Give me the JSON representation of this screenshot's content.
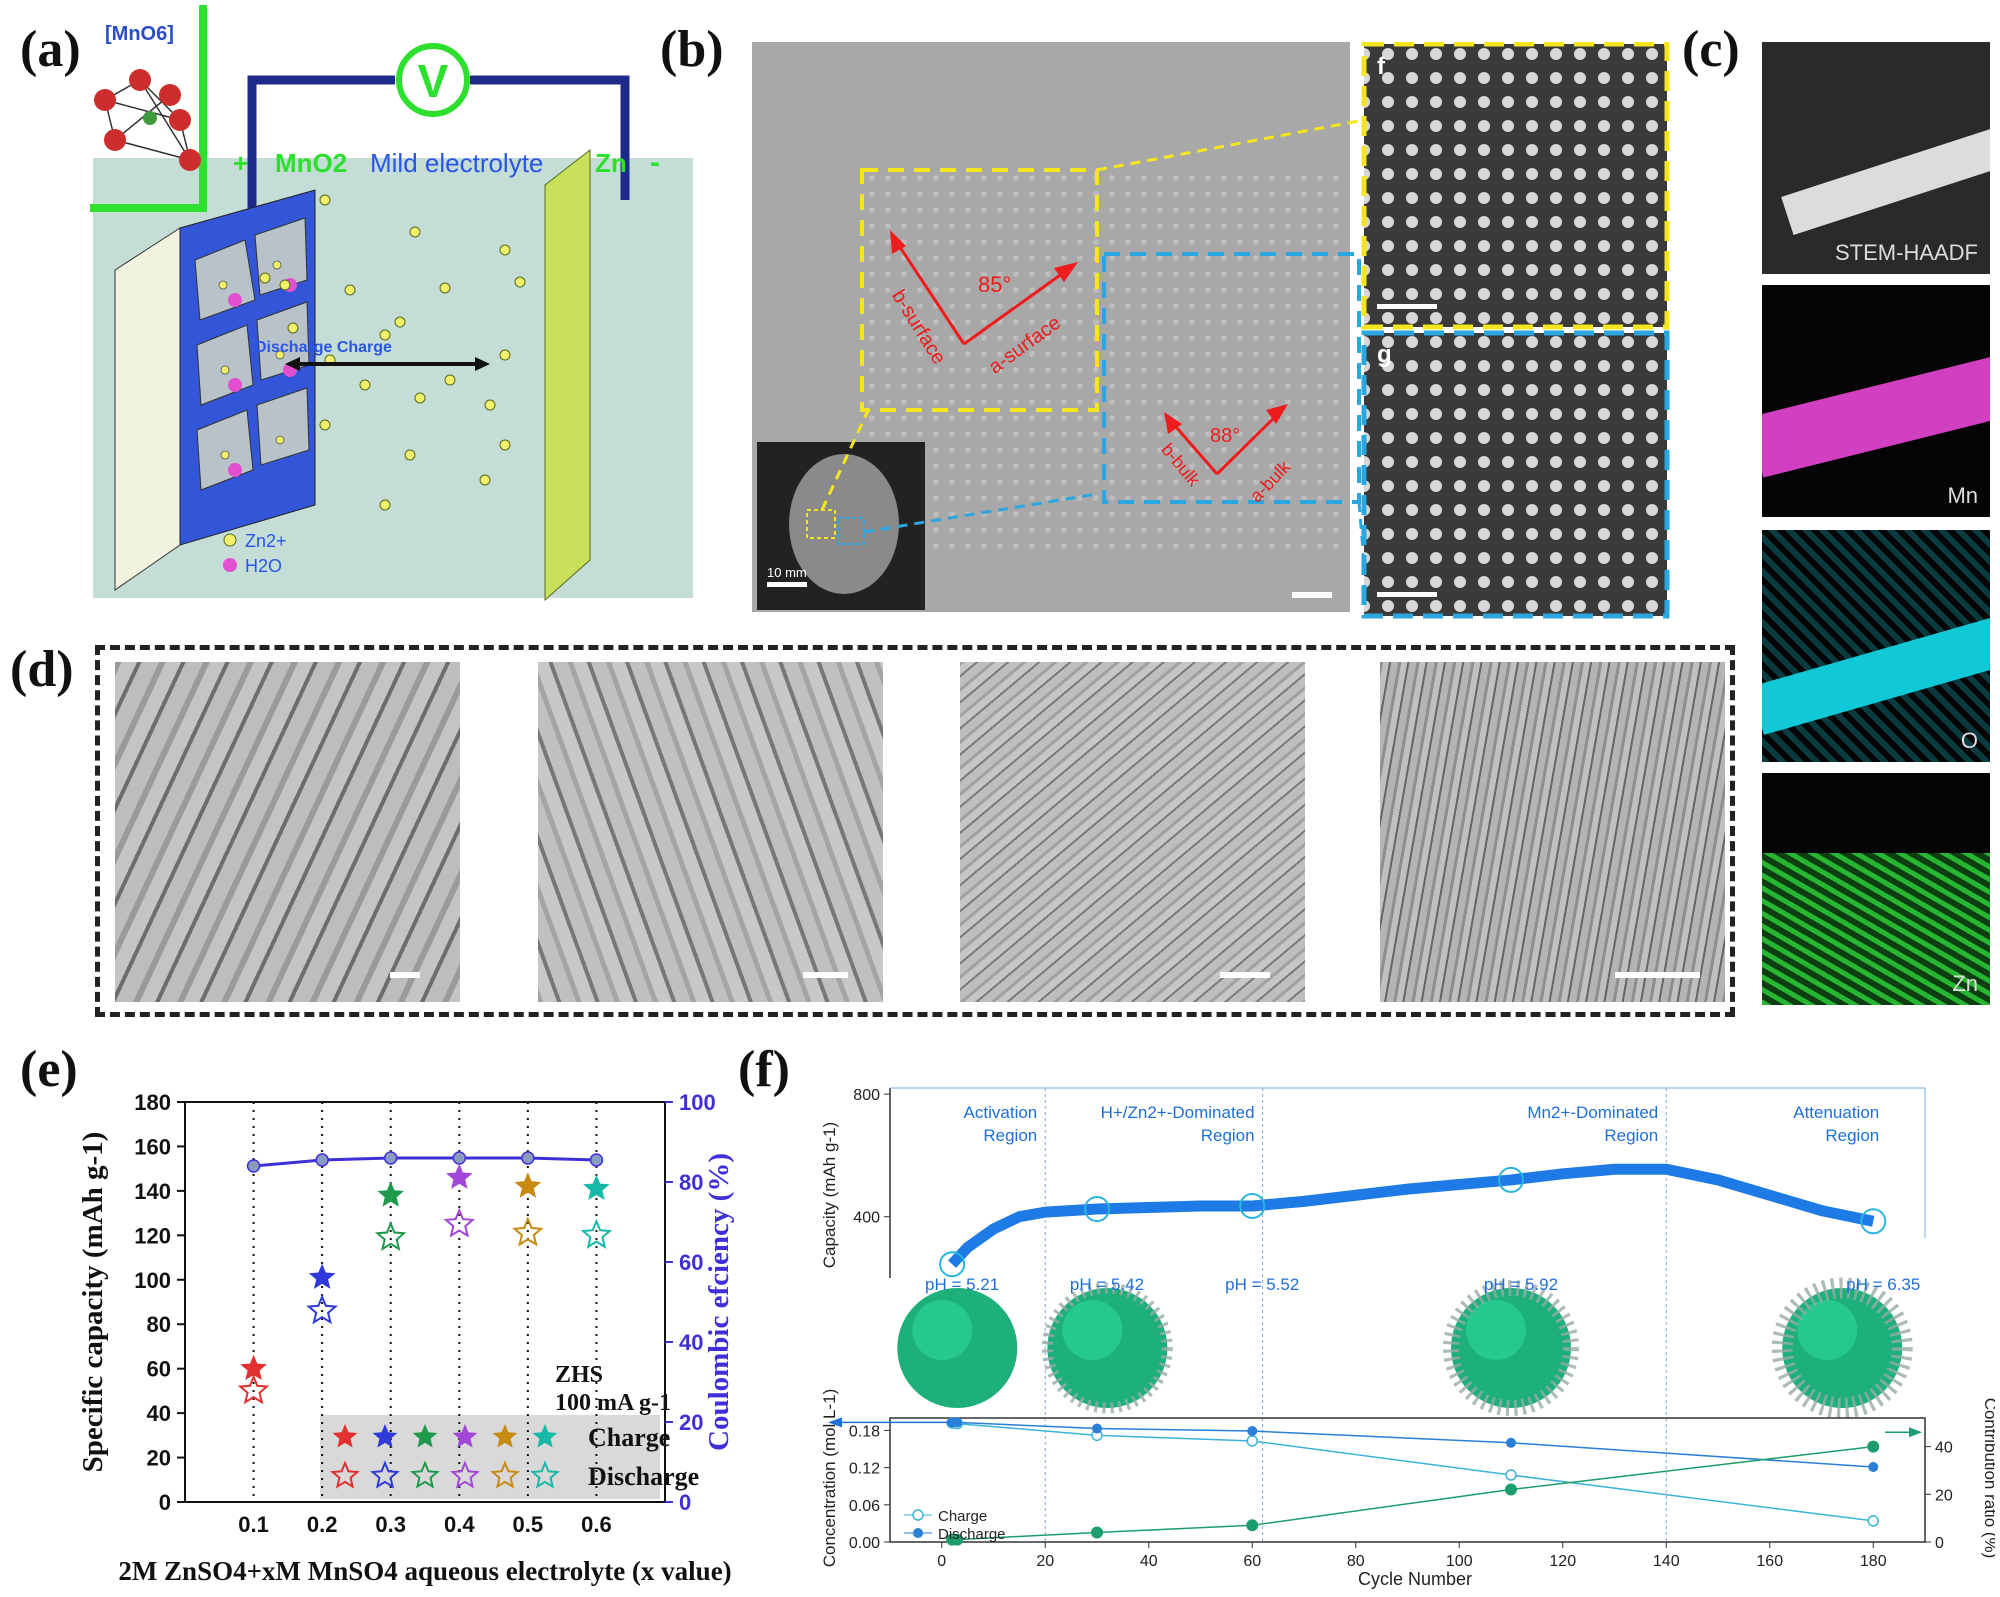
{
  "panel_labels": {
    "a": "(a)",
    "b": "(b)",
    "c": "(c)",
    "d": "(d)",
    "e": "(e)",
    "f": "(f)"
  },
  "panel_a": {
    "octahedron_label": "[MnO6]",
    "voltmeter": "V",
    "plus": "+",
    "minus": "-",
    "cathode": "MnO2",
    "electrolyte": "Mild electrolyte",
    "anode": "Zn",
    "process": "Discharge  Charge",
    "legend_zn": "Zn2+",
    "legend_h2o": "H2O",
    "colors": {
      "background": "#c4ddd6",
      "frame": "#1e2a8a",
      "cathode": "#3355d8",
      "anode": "#c8e05a",
      "highlight": "#2ee02e"
    }
  },
  "panel_b": {
    "inset_scale": "10 mm",
    "angle_surface": "85°",
    "a_surface": "a-surface",
    "b_surface": "b-surface",
    "angle_bulk": "88°",
    "a_bulk": "a-bulk",
    "b_bulk": "b-bulk",
    "sub_f": "f",
    "sub_g": "g",
    "colors": {
      "surface_box": "#f5e61c",
      "bulk_box": "#2aa7e0",
      "arrows": "#ee1c1c"
    }
  },
  "panel_c": {
    "maps": [
      {
        "label": "STEM-HAADF",
        "color": "#d8d8d8"
      },
      {
        "label": "Mn",
        "color": "#d23fc0"
      },
      {
        "label": "O",
        "color": "#11c9d6"
      },
      {
        "label": "Zn",
        "color": "#26b631"
      }
    ]
  },
  "panel_e": {
    "chart_data": {
      "type": "scatter",
      "x": [
        0.1,
        0.2,
        0.3,
        0.4,
        0.5,
        0.6
      ],
      "xlabel": "2M ZnSO4+xM MnSO4 aqueous electrolyte (x value)",
      "ylabel": "Specific capacity (mAh g-1)",
      "ylabel2": "Coulombic efciency (%)",
      "xlim": [
        0,
        0.7
      ],
      "ylim": [
        0,
        180
      ],
      "ylim2": [
        0,
        100
      ],
      "yticks": [
        0,
        20,
        40,
        60,
        80,
        100,
        120,
        140,
        160,
        180
      ],
      "yticks2": [
        0,
        20,
        40,
        60,
        80,
        100
      ],
      "xticks": [
        "0.1",
        "0.2",
        "0.3",
        "0.4",
        "0.5",
        "0.6"
      ],
      "series": [
        {
          "name": "Charge",
          "values": [
            60,
            101,
            138,
            146,
            142,
            141
          ]
        },
        {
          "name": "Discharge",
          "values": [
            50,
            86,
            119,
            125,
            121,
            120
          ]
        },
        {
          "name": "",
          "values": [
            84,
            85.5,
            86,
            86,
            86,
            85.5
          ],
          "axis": "right"
        }
      ],
      "annotation_1": "ZHS",
      "annotation_2": "100 mA g-1",
      "legend_charge": "Charge",
      "legend_discharge": "Discharge",
      "point_colors": [
        "#e23030",
        "#2f3ad9",
        "#1f9a4d",
        "#a347d9",
        "#c88a10",
        "#16b8a8"
      ],
      "line_color": "#3f2fd8"
    }
  },
  "panel_f": {
    "chart_data": [
      {
        "type": "line",
        "ylabel": "Capacity (mAh g-1)",
        "yticks": [
          400,
          800
        ],
        "ylim": [
          200,
          820
        ],
        "x": [
          2,
          5,
          10,
          15,
          20,
          30,
          40,
          50,
          60,
          70,
          80,
          90,
          100,
          110,
          120,
          130,
          140,
          150,
          160,
          170,
          180
        ],
        "values": [
          245,
          300,
          360,
          400,
          415,
          425,
          430,
          435,
          435,
          450,
          470,
          490,
          505,
          520,
          540,
          555,
          555,
          520,
          470,
          420,
          385
        ],
        "region_bounds": [
          20,
          62,
          140
        ],
        "regions": [
          "Activation Region",
          "H+/Zn2+-Dominated Region",
          "Mn2+-Dominated Region",
          "Attenuation Region"
        ],
        "ph_labels": [
          {
            "x": 2,
            "text": "pH = 5.21"
          },
          {
            "x": 30,
            "text": "pH = 5.42"
          },
          {
            "x": 60,
            "text": "pH = 5.52"
          },
          {
            "x": 110,
            "text": "pH = 5.92"
          },
          {
            "x": 180,
            "text": "pH = 6.35"
          }
        ]
      },
      {
        "type": "line",
        "xlabel": "Cycle Number",
        "ylabel": "Concentration (mol L-1)",
        "ylabel2": "Contribution ratio (%)",
        "xlim": [
          -10,
          190
        ],
        "ylim": [
          0,
          0.2
        ],
        "ylim2": [
          0,
          52
        ],
        "xticks": [
          0,
          20,
          40,
          60,
          80,
          100,
          120,
          140,
          160,
          180
        ],
        "yticks": [
          "0.00",
          "0.06",
          "0.12",
          "0.18"
        ],
        "yticks2": [
          0,
          20,
          40
        ],
        "series": [
          {
            "name": "Charge",
            "x": [
              2,
              3,
              30,
              60,
              110,
              180
            ],
            "values": [
              0.192,
              0.191,
              0.172,
              0.163,
              0.108,
              0.034
            ]
          },
          {
            "name": "Discharge",
            "x": [
              2,
              3,
              30,
              60,
              110,
              180
            ],
            "values": [
              0.193,
              0.193,
              0.183,
              0.179,
              0.16,
              0.121
            ]
          },
          {
            "name": "",
            "axis": "right",
            "x": [
              2,
              3,
              30,
              60,
              110,
              180
            ],
            "values": [
              1,
              1,
              4,
              7,
              22,
              40
            ]
          }
        ],
        "colors": {
          "charge": "#3bb3d9",
          "discharge": "#2a7fd8",
          "ratio": "#1b9e6b"
        }
      }
    ]
  }
}
